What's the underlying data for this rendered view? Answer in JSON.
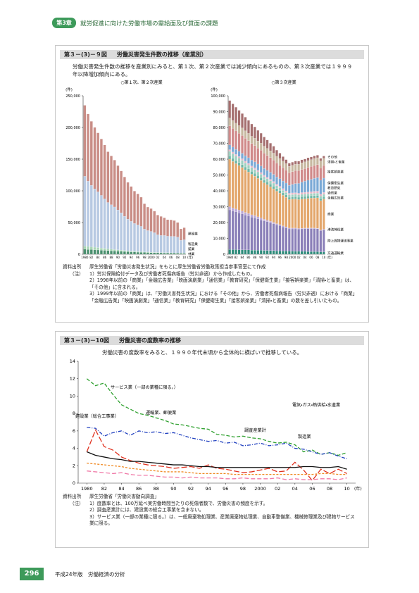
{
  "header": {
    "chapter": "第3章",
    "title": "就労促進に向けた労働市場の需給面及び質面の課題"
  },
  "figure_9": {
    "title": "第３－(3)－９図",
    "heading": "労働災害発生件数の推移（産業別）",
    "lead": "労働災害発生件数の推移を産業別にみると、第１次、第２次産業では減少傾向にあるものの、第３次産業では１９９９年以降増加傾向にある。",
    "source_label": "資料出所",
    "source": "厚生労働省「労働災害発生状況」をもとに厚生労働省労働政策担当参事官室にて作成",
    "notes_label": "（注）",
    "notes": [
      "1）労災保険給付データ及び労働者死傷病報告（労災非適）から作成したもの。",
      "2）1998年以前の「商業」「金融広告業」「映画演劇業」「通信業」「教育研究」「保健衛生業」「接客娯楽業」「清掃・と畜業」は、「その他」に含まれる。",
      "3）1999年以前の「商業」は、「労働災害発生状況」における「その他」から、労働者死傷病報告（労災非適）における「商業」「金融広告業」「映画演劇業」「通信業」「教育研究」「保健衛生業」「接客娯楽業」「清掃・と畜業」の数を差し引いたもの。"
    ]
  },
  "figure_10": {
    "title": "第３－(3)－10図",
    "heading": "労働災害の度数率の推移",
    "lead": "労働災害の度数率をみると、１９９０年代末頃から全体的に横ばいで推移している。",
    "source_label": "資料出所",
    "source": "厚生労働省「労働災害動向調査」",
    "notes_label": "（注）",
    "notes": [
      "1）度数率とは、100万延べ実労働時間当たりの死傷者数で、労働災害の頻度を示す。",
      "2）調査産業計には、建設業の総合工事業を含まない。",
      "3）サービス業（一部の業種に限る。）は、一般廃棄物処理業、産業廃棄物処理業、自動車整備業、機械修理業及び建物サービス業に限る。"
    ]
  },
  "chart_data": [
    {
      "type": "bar",
      "stacked": true,
      "subtitle": "○第１次、第２次産業",
      "y_unit": "(件)",
      "x_unit": "(年)",
      "categories": [
        "1980",
        null,
        "82",
        null,
        "84",
        null,
        "86",
        null,
        "88",
        null,
        "90",
        null,
        "92",
        null,
        "94",
        null,
        "96",
        null,
        "98",
        null,
        "2000",
        null,
        "02",
        null,
        "04",
        null,
        "06",
        null,
        "08",
        null,
        "10"
      ],
      "ylim": [
        0,
        250000
      ],
      "yticks": [
        0,
        {
          "value": 50000,
          "label": "50,000"
        },
        {
          "value": 100000,
          "label": "100,000"
        },
        {
          "value": 150000,
          "label": "150,000"
        },
        {
          "value": 200000,
          "label": "200,000"
        },
        {
          "value": 250000,
          "label": "250,000"
        }
      ],
      "grid": false,
      "series": [
        {
          "name": "林業",
          "color": "#4a8f6e",
          "values": [
            8000,
            7600,
            7300,
            7000,
            6700,
            6400,
            6100,
            5800,
            5500,
            5200,
            4900,
            4600,
            4300,
            4000,
            3700,
            3500,
            3300,
            3100,
            2900,
            2700,
            2500,
            2400,
            2300,
            2200,
            2100,
            2000,
            1900,
            1800,
            1700,
            1600,
            1500
          ]
        },
        {
          "name": "鉱業",
          "color": "#a8d5b5",
          "values": [
            5000,
            4700,
            4400,
            4100,
            3800,
            3500,
            3200,
            2900,
            2600,
            2300,
            2000,
            1800,
            1600,
            1400,
            1200,
            1100,
            1000,
            900,
            800,
            700,
            600,
            600,
            500,
            500,
            500,
            500,
            400,
            400,
            400,
            400,
            400
          ]
        },
        {
          "name": "製造業",
          "color": "#b7c9e2",
          "values": [
            110000,
            103000,
            97000,
            92000,
            88000,
            83000,
            78000,
            73000,
            70000,
            67000,
            63000,
            59000,
            54000,
            50000,
            47000,
            44000,
            42000,
            40000,
            36000,
            34000,
            33000,
            31000,
            28000,
            27000,
            27000,
            26000,
            26000,
            26000,
            25000,
            20000,
            21000
          ]
        },
        {
          "name": "建設業",
          "color": "#c98d86",
          "values": [
            112000,
            106000,
            101000,
            97000,
            93000,
            89000,
            85000,
            80000,
            77000,
            74000,
            70000,
            66000,
            62000,
            58000,
            55000,
            51000,
            49000,
            46000,
            40000,
            37000,
            36000,
            34000,
            31000,
            30000,
            28000,
            26000,
            26000,
            25000,
            23000,
            18000,
            19000
          ]
        }
      ]
    },
    {
      "type": "bar",
      "stacked": true,
      "subtitle": "○第３次産業",
      "y_unit": "(件)",
      "x_unit": "(年)",
      "categories": [
        "1980",
        null,
        "82",
        null,
        "84",
        null,
        "86",
        null,
        "88",
        null,
        "90",
        null,
        "92",
        null,
        "94",
        null,
        "96",
        null,
        "98",
        null,
        "2000",
        null,
        "02",
        null,
        "04",
        null,
        "06",
        null,
        "08",
        null,
        "10"
      ],
      "ylim": [
        0,
        100000
      ],
      "yticks": [
        0,
        {
          "value": 10000,
          "label": "10,000"
        },
        {
          "value": 20000,
          "label": "20,000"
        },
        {
          "value": 30000,
          "label": "30,000"
        },
        {
          "value": 40000,
          "label": "40,000"
        },
        {
          "value": 50000,
          "label": "50,000"
        },
        {
          "value": 60000,
          "label": "60,000"
        },
        {
          "value": 70000,
          "label": "70,000"
        },
        {
          "value": 80000,
          "label": "80,000"
        },
        {
          "value": 90000,
          "label": "90,000"
        },
        {
          "value": 100000,
          "label": "100,000"
        }
      ],
      "grid": false,
      "series": [
        {
          "name": "交通運輸業",
          "color": "#2e8b7a",
          "values": [
            3000,
            2900,
            2900,
            2800,
            2800,
            2700,
            2700,
            2600,
            2600,
            2500,
            2500,
            2400,
            2400,
            2300,
            2300,
            2200,
            2200,
            2100,
            2100,
            2000,
            2000,
            1900,
            1900,
            1800,
            1800,
            1700,
            1700,
            1600,
            1600,
            1500,
            1500
          ]
        },
        {
          "name": "陸上貨物運送事業",
          "color": "#8a7fb8",
          "values": [
            25000,
            24400,
            23800,
            23300,
            22700,
            22100,
            21500,
            20900,
            20400,
            19800,
            19200,
            18600,
            18100,
            17500,
            16900,
            16300,
            15800,
            15200,
            14600,
            14000,
            14000,
            14100,
            14000,
            14200,
            14300,
            14400,
            14500,
            14600,
            14500,
            13500,
            14000
          ]
        },
        {
          "name": "港湾荷役業",
          "color": "#b9a6d6",
          "values": [
            2000,
            1900,
            1800,
            1800,
            1700,
            1600,
            1500,
            1400,
            1400,
            1300,
            1200,
            1100,
            1000,
            1000,
            900,
            800,
            700,
            600,
            600,
            500,
            500,
            500,
            400,
            400,
            400,
            400,
            400,
            300,
            300,
            300,
            300
          ]
        },
        {
          "name": "商業",
          "color": "#e3a66b",
          "values": [
            30000,
            29400,
            28700,
            28100,
            27500,
            26800,
            26200,
            25600,
            24900,
            24300,
            23700,
            23000,
            22400,
            21800,
            21200,
            20500,
            19900,
            19300,
            18600,
            18000,
            18200,
            18300,
            18200,
            18400,
            18500,
            18700,
            18800,
            19000,
            19200,
            18500,
            19000
          ]
        },
        {
          "name": "金融広告業",
          "color": "#6fb7a5",
          "values": [
            2000,
            2000,
            2000,
            1900,
            1900,
            1900,
            1900,
            1800,
            1800,
            1800,
            1800,
            1700,
            1700,
            1700,
            1700,
            1600,
            1600,
            1600,
            1500,
            1500,
            1500,
            1500,
            1500,
            1500,
            1500,
            1500,
            1500,
            1500,
            1500,
            1500,
            1500
          ]
        },
        {
          "name": "通信業",
          "color": "#9fd0c0",
          "values": [
            3000,
            2900,
            2800,
            2800,
            2700,
            2600,
            2500,
            2400,
            2400,
            2300,
            2200,
            2100,
            2000,
            2000,
            1900,
            1800,
            1700,
            1600,
            1600,
            1500,
            1500,
            1500,
            1500,
            1500,
            1500,
            1500,
            1500,
            1500,
            1500,
            1400,
            1500
          ]
        },
        {
          "name": "教育研究",
          "color": "#e8b5c8",
          "values": [
            1000,
            1000,
            1000,
            1000,
            1000,
            1000,
            1000,
            1000,
            1000,
            1000,
            1000,
            1000,
            1000,
            1000,
            1000,
            1000,
            1000,
            1000,
            1000,
            1000,
            1000,
            1000,
            1000,
            1100,
            1100,
            1100,
            1100,
            1200,
            1200,
            1200,
            1200
          ]
        },
        {
          "name": "保健衛生業",
          "color": "#7aa9d6",
          "values": [
            3000,
            3100,
            3200,
            3300,
            3400,
            3500,
            3600,
            3700,
            3800,
            3900,
            4100,
            4200,
            4300,
            4400,
            4500,
            4600,
            4700,
            4800,
            4900,
            5000,
            5400,
            5800,
            6200,
            6600,
            7000,
            7400,
            7800,
            8200,
            8600,
            8800,
            9000
          ]
        },
        {
          "name": "接客娯楽業",
          "color": "#d08a8a",
          "values": [
            12000,
            11800,
            11600,
            11400,
            11200,
            11000,
            10700,
            10500,
            10300,
            10100,
            9900,
            9700,
            9500,
            9300,
            9100,
            8800,
            8600,
            8400,
            8200,
            8000,
            8000,
            8100,
            8000,
            8000,
            8000,
            8100,
            8100,
            8100,
            8100,
            7800,
            8000
          ]
        },
        {
          "name": "清掃・と畜業",
          "color": "#c7b8a0",
          "values": [
            5000,
            5000,
            4900,
            4800,
            4800,
            4700,
            4700,
            4600,
            4600,
            4500,
            4500,
            4400,
            4400,
            4300,
            4300,
            4200,
            4200,
            4100,
            4100,
            4000,
            4000,
            4100,
            4100,
            4200,
            4200,
            4300,
            4300,
            4400,
            4400,
            4400,
            4500
          ]
        },
        {
          "name": "その他",
          "color": "#a56f6f",
          "values": [
            11000,
            10500,
            10100,
            9600,
            9100,
            8600,
            8200,
            7700,
            7200,
            6700,
            6300,
            5800,
            5300,
            4800,
            4400,
            3900,
            3400,
            2900,
            2500,
            2000,
            2000,
            2000,
            1900,
            1900,
            1800,
            1800,
            1700,
            1700,
            1600,
            1600,
            1500
          ]
        }
      ]
    },
    {
      "type": "line",
      "x_unit": "(年)",
      "x": [
        1980,
        1981,
        1982,
        1983,
        1984,
        1985,
        1986,
        1987,
        1988,
        1989,
        1990,
        1991,
        1992,
        1993,
        1994,
        1995,
        1996,
        1997,
        1998,
        1999,
        2000,
        2001,
        2002,
        2003,
        2004,
        2005,
        2006,
        2007,
        2008,
        2009,
        2010
      ],
      "xlim": [
        1979,
        2011
      ],
      "xticks": [
        1980,
        {
          "value": 1982,
          "label": "82"
        },
        {
          "value": 1984,
          "label": "84"
        },
        {
          "value": 1986,
          "label": "86"
        },
        {
          "value": 1988,
          "label": "88"
        },
        {
          "value": 1990,
          "label": "90"
        },
        {
          "value": 1992,
          "label": "92"
        },
        {
          "value": 1994,
          "label": "94"
        },
        {
          "value": 1996,
          "label": "96"
        },
        {
          "value": 1998,
          "label": "98"
        },
        2000,
        {
          "value": 2002,
          "label": "02"
        },
        {
          "value": 2004,
          "label": "04"
        },
        {
          "value": 2006,
          "label": "06"
        },
        {
          "value": 2008,
          "label": "08"
        },
        {
          "value": 2010,
          "label": "10"
        }
      ],
      "ylim": [
        0,
        14
      ],
      "yticks": [
        0,
        2,
        4,
        6,
        8,
        10,
        12,
        14
      ],
      "grid": false,
      "series": [
        {
          "name": "サービス業（一部の業種に限る。）",
          "color": "#2ea02e",
          "values": [
            12.0,
            11.2,
            11.5,
            10.2,
            9.0,
            8.5,
            8.0,
            7.8,
            7.5,
            7.2,
            6.8,
            6.7,
            6.5,
            6.3,
            6.2,
            5.6,
            5.5,
            5.3,
            5.4,
            5.2,
            5.1,
            4.8,
            4.6,
            4.7,
            4.4,
            3.6,
            3.8,
            3.3,
            3.5,
            3.2,
            3.5
          ]
        },
        {
          "name": "運輸業、郵便業",
          "color": "#1f3fbf",
          "values": [
            6.4,
            6.3,
            5.4,
            5.8,
            6.0,
            5.5,
            6.0,
            5.8,
            5.9,
            5.7,
            5.8,
            5.5,
            5.2,
            5.0,
            4.8,
            4.9,
            4.6,
            4.7,
            4.3,
            4.4,
            4.6,
            4.3,
            4.4,
            4.6,
            4.0,
            3.9,
            3.6,
            3.3,
            3.5,
            3.1,
            2.8
          ]
        },
        {
          "name": "建設業（総合工事業）",
          "color": "#e0301e",
          "values": [
            3.6,
            6.1,
            4.2,
            3.8,
            3.0,
            2.6,
            2.3,
            2.1,
            2.0,
            1.9,
            1.7,
            1.8,
            1.9,
            1.7,
            2.1,
            1.7,
            1.6,
            1.4,
            1.2,
            1.3,
            1.5,
            1.7,
            1.3,
            1.4,
            2.4,
            1.5,
            0.3,
            1.6,
            1.1,
            1.6,
            1.1
          ]
        },
        {
          "name": "調査産業計",
          "color": "#111111",
          "values": [
            3.6,
            3.2,
            3.0,
            2.8,
            2.7,
            2.5,
            2.5,
            2.4,
            2.3,
            2.2,
            2.1,
            2.1,
            2.0,
            1.9,
            1.9,
            1.8,
            1.8,
            1.8,
            1.8,
            1.8,
            1.8,
            1.8,
            1.8,
            1.8,
            1.8,
            1.9,
            1.9,
            1.8,
            1.8,
            1.9,
            1.6
          ]
        },
        {
          "name": "製造業",
          "color": "#f08a24",
          "values": [
            2.3,
            2.2,
            2.1,
            2.0,
            1.9,
            1.7,
            1.6,
            1.5,
            1.4,
            1.3,
            1.3,
            1.3,
            1.2,
            1.1,
            1.1,
            1.1,
            1.1,
            1.0,
            1.0,
            1.0,
            1.0,
            1.0,
            1.0,
            1.0,
            1.0,
            1.0,
            1.0,
            1.1,
            1.1,
            1.0,
            1.0
          ]
        },
        {
          "name": "電気・ガス・熱供給・水道業",
          "color": "#f07aa8",
          "values": [
            1.4,
            1.3,
            1.2,
            1.1,
            1.2,
            1.0,
            0.9,
            0.9,
            0.8,
            0.7,
            0.7,
            0.6,
            0.7,
            0.6,
            0.6,
            0.6,
            0.5,
            0.5,
            0.6,
            0.5,
            0.5,
            0.5,
            0.6,
            0.4,
            0.5,
            0.4,
            0.4,
            0.5,
            0.5,
            0.4,
            0.6
          ]
        }
      ]
    }
  ],
  "footer": {
    "page": "296",
    "text": "平成24年版　労働経済の分析"
  }
}
